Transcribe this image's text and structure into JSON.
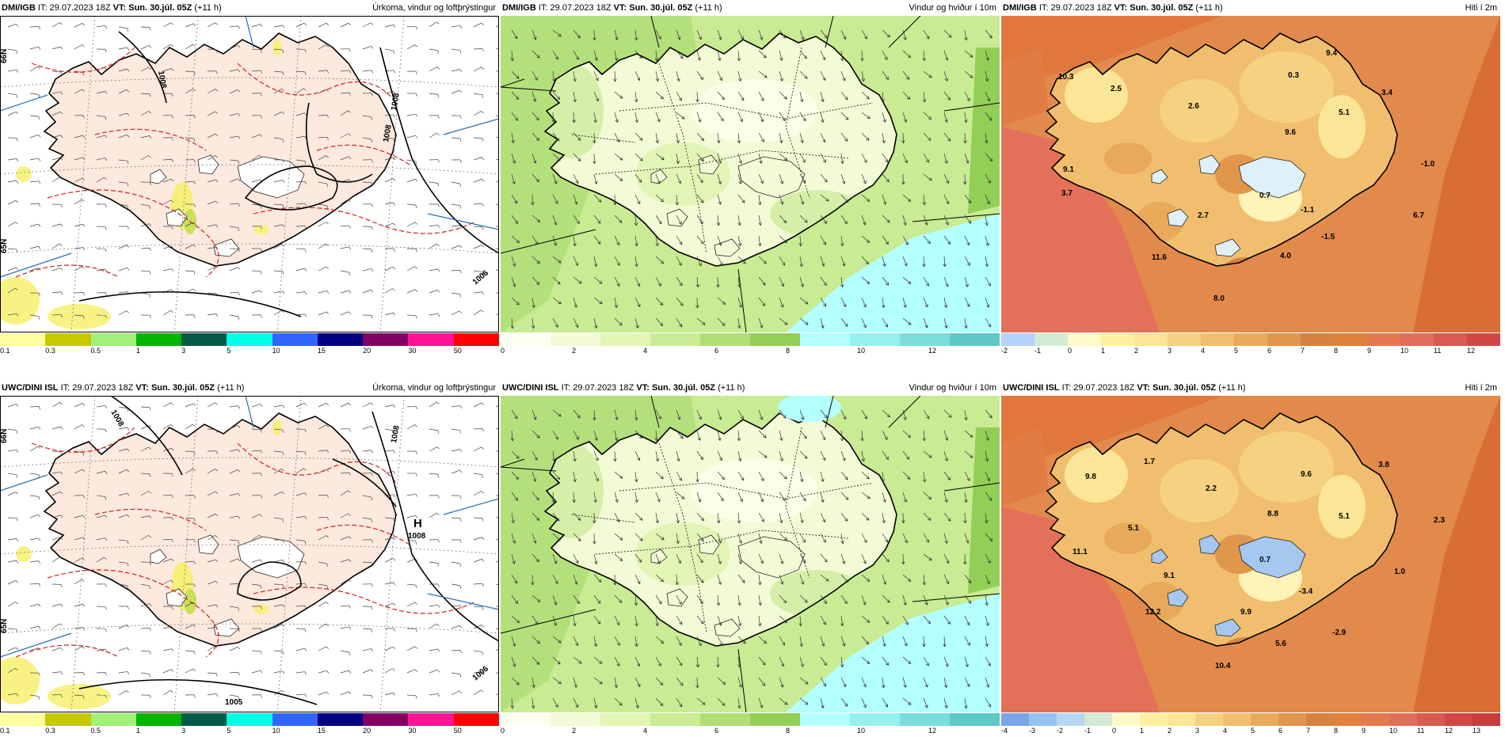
{
  "panels": [
    {
      "id": "dmi-precip",
      "source": "DMI/IGB",
      "it_label": "IT:",
      "it": "29.07.2023 18Z",
      "vt_label": "VT:",
      "vt": "Sun. 30.júl. 05Z",
      "lead": "(+11 h)",
      "title": "Úrkoma, vindur og loftþrýstingur",
      "type": "precip",
      "scale_colors": [
        "#ffffa0",
        "#c8c800",
        "#a0f07a",
        "#00b400",
        "#005a46",
        "#00ffe6",
        "#3264ff",
        "#000082",
        "#820064",
        "#ff1496",
        "#ff0000"
      ],
      "scale_labels": [
        "0.1",
        "0.3",
        "0.5",
        "1",
        "3",
        "5",
        "10",
        "15",
        "20",
        "30",
        "50"
      ],
      "pressure_labels": [
        "1008",
        "1008",
        "1006",
        "1008"
      ],
      "high": null
    },
    {
      "id": "dmi-wind",
      "source": "DMI/IGB",
      "it_label": "IT:",
      "it": "29.07.2023 18Z",
      "vt_label": "VT:",
      "vt": "Sun. 30.júl. 05Z",
      "lead": "(+11 h)",
      "title": "Vindur og hviður í 10m",
      "type": "wind",
      "scale_colors": [
        "#fdfff0",
        "#f3fbd6",
        "#e2f5b5",
        "#cbeb95",
        "#b0de75",
        "#93cf56",
        "#b4ffff",
        "#96f0f0",
        "#7adddc",
        "#5fc8c8"
      ],
      "scale_labels": [
        "0",
        "2",
        "4",
        "6",
        "8",
        "10",
        "12"
      ],
      "pressure_labels": [],
      "high": null
    },
    {
      "id": "dmi-temp",
      "source": "DMI/IGB",
      "it_label": "IT:",
      "it": "29.07.2023 18Z",
      "vt_label": "VT:",
      "vt": "Sun. 30.júl. 05Z",
      "lead": "(+11 h)",
      "title": "Hiti í 2m",
      "type": "temp",
      "scale_colors": [
        "#b4d2ff",
        "#d2ebd2",
        "#fffac8",
        "#fff0a0",
        "#fae696",
        "#f5d282",
        "#f0be6e",
        "#e8aa5a",
        "#e0964b",
        "#d68240",
        "#e0823c",
        "#e47850",
        "#e06e5a",
        "#d85a50",
        "#d24646"
      ],
      "scale_labels": [
        "-2",
        "-1",
        "0",
        "1",
        "2",
        "3",
        "4",
        "5",
        "6",
        "7",
        "8",
        "9",
        "10",
        "11",
        "12"
      ],
      "temp_labels": [
        {
          "v": "10.3"
        },
        {
          "v": "2.5"
        },
        {
          "v": "2.6"
        },
        {
          "v": "0.3"
        },
        {
          "v": "9.4"
        },
        {
          "v": "3.4"
        },
        {
          "v": "5.1"
        },
        {
          "v": "9.6"
        },
        {
          "v": "-1.0"
        },
        {
          "v": "9.1"
        },
        {
          "v": "3.7"
        },
        {
          "v": "0.7"
        },
        {
          "v": "2.7"
        },
        {
          "v": "-1.1"
        },
        {
          "v": "-1.5"
        },
        {
          "v": "6.7"
        },
        {
          "v": "4.0"
        },
        {
          "v": "11.6"
        },
        {
          "v": "8.0"
        }
      ]
    },
    {
      "id": "uwc-precip",
      "source": "UWC/DINI ISL",
      "it_label": "IT:",
      "it": "29.07.2023 18Z",
      "vt_label": "VT:",
      "vt": "Sun. 30.júl. 05Z",
      "lead": "(+11 h)",
      "title": "Úrkoma, vindur og loftþrýstingur",
      "type": "precip",
      "scale_colors": [
        "#ffffa0",
        "#c8c800",
        "#a0f07a",
        "#00b400",
        "#005a46",
        "#00ffe6",
        "#3264ff",
        "#000082",
        "#820064",
        "#ff1496",
        "#ff0000"
      ],
      "scale_labels": [
        "0.1",
        "0.3",
        "0.5",
        "1",
        "3",
        "5",
        "10",
        "15",
        "20",
        "30",
        "50"
      ],
      "pressure_labels": [
        "1008",
        "1008",
        "1006"
      ],
      "high": {
        "letter": "H",
        "value": "1008"
      },
      "low_label": "1005"
    },
    {
      "id": "uwc-wind",
      "source": "UWC/DINI ISL",
      "it_label": "IT:",
      "it": "29.07.2023 18Z",
      "vt_label": "VT:",
      "vt": "Sun. 30.júl. 05Z",
      "lead": "(+11 h)",
      "title": "Vindur og hviður í 10m",
      "type": "wind",
      "scale_colors": [
        "#fdfff0",
        "#f3fbd6",
        "#e2f5b5",
        "#cbeb95",
        "#b0de75",
        "#93cf56",
        "#b4ffff",
        "#96f0f0",
        "#7adddc",
        "#5fc8c8"
      ],
      "scale_labels": [
        "0",
        "2",
        "4",
        "6",
        "8",
        "10",
        "12"
      ],
      "pressure_labels": [],
      "high": null
    },
    {
      "id": "uwc-temp",
      "source": "UWC/DINI ISL",
      "it_label": "IT:",
      "it": "29.07.2023 18Z",
      "vt_label": "VT:",
      "vt": "Sun. 30.júl. 05Z",
      "lead": "(+11 h)",
      "title": "Hiti í 2m",
      "type": "temp",
      "scale_colors": [
        "#7aa5e6",
        "#96c3f5",
        "#b4d7f5",
        "#d2ebd2",
        "#fffac8",
        "#fff0a0",
        "#fae696",
        "#f5d282",
        "#f0be6e",
        "#e8aa5a",
        "#e0964b",
        "#d68240",
        "#e0823c",
        "#e47850",
        "#e06e5a",
        "#d85a50",
        "#d24646",
        "#c83c3c"
      ],
      "scale_labels": [
        "-4",
        "-3",
        "-2",
        "-1",
        "0",
        "1",
        "2",
        "3",
        "4",
        "5",
        "6",
        "7",
        "8",
        "9",
        "10",
        "11",
        "12",
        "13"
      ],
      "temp_labels": [
        {
          "v": "9.8"
        },
        {
          "v": "1.7"
        },
        {
          "v": "2.2"
        },
        {
          "v": "9.6"
        },
        {
          "v": "3.8"
        },
        {
          "v": "5.1"
        },
        {
          "v": "8.8"
        },
        {
          "v": "2.3"
        },
        {
          "v": "5.1"
        },
        {
          "v": "11.1"
        },
        {
          "v": "0.7"
        },
        {
          "v": "9.1"
        },
        {
          "v": "-3.4"
        },
        {
          "v": "1.0"
        },
        {
          "v": "12.2"
        },
        {
          "v": "9.9"
        },
        {
          "v": "-2.9"
        },
        {
          "v": "5.6"
        },
        {
          "v": "10.4"
        }
      ]
    }
  ],
  "axis_labels": {
    "lat": "66N",
    "lat_low": "65N"
  }
}
